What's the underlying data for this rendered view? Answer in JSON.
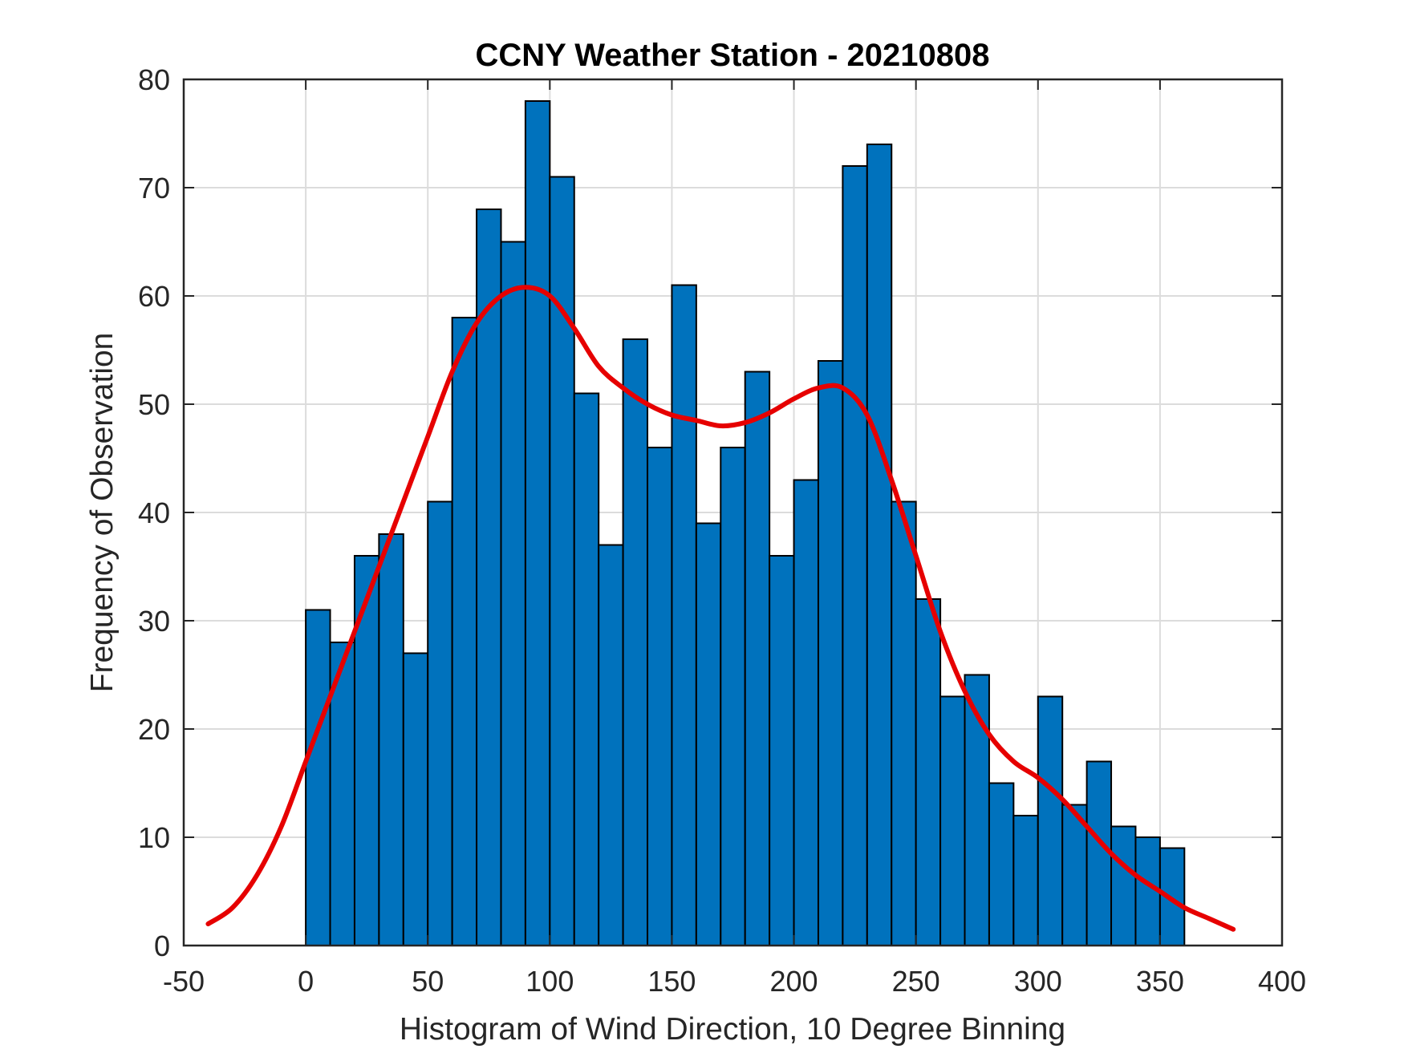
{
  "chart_data": {
    "type": "bar",
    "title": "CCNY Weather Station - 20210808",
    "xlabel": "Histogram of Wind Direction, 10 Degree Binning",
    "ylabel": "Frequency of Observation",
    "xlim": [
      -50,
      400
    ],
    "ylim": [
      0,
      80
    ],
    "grid": true,
    "xticks": [
      -50,
      0,
      50,
      100,
      150,
      200,
      250,
      300,
      350,
      400
    ],
    "yticks": [
      0,
      10,
      20,
      30,
      40,
      50,
      60,
      70,
      80
    ],
    "xtick_labels": [
      "-50",
      "0",
      "50",
      "100",
      "150",
      "200",
      "250",
      "300",
      "350",
      "400"
    ],
    "ytick_labels": [
      "0",
      "10",
      "20",
      "30",
      "40",
      "50",
      "60",
      "70",
      "80"
    ],
    "bin_width": 10,
    "bin_start": 0,
    "bar_color": "#0072BD",
    "bar_edge_color": "#000000",
    "values": [
      31,
      28,
      36,
      38,
      27,
      41,
      58,
      68,
      65,
      78,
      71,
      51,
      37,
      56,
      46,
      61,
      39,
      46,
      53,
      36,
      43,
      54,
      72,
      74,
      41,
      32,
      23,
      25,
      15,
      12,
      23,
      13,
      17,
      11,
      10,
      9
    ],
    "density_curve": {
      "color": "#E60000",
      "x": [
        -40,
        -30,
        -20,
        -10,
        0,
        10,
        20,
        30,
        40,
        50,
        60,
        70,
        80,
        90,
        100,
        110,
        120,
        130,
        140,
        150,
        160,
        170,
        180,
        190,
        200,
        210,
        220,
        230,
        240,
        250,
        260,
        270,
        280,
        290,
        300,
        310,
        320,
        330,
        340,
        350,
        360,
        370,
        380
      ],
      "y": [
        2,
        3.5,
        6.5,
        11,
        17,
        23,
        29,
        35,
        41,
        47,
        53,
        57.5,
        60,
        60.8,
        60,
        57,
        53.5,
        51.5,
        50,
        49,
        48.5,
        48,
        48.3,
        49.2,
        50.5,
        51.5,
        51.5,
        49,
        43,
        36,
        29,
        23.5,
        19.5,
        17,
        15.5,
        13.5,
        11,
        8.5,
        6.5,
        5,
        3.5,
        2.5,
        1.5
      ]
    }
  }
}
